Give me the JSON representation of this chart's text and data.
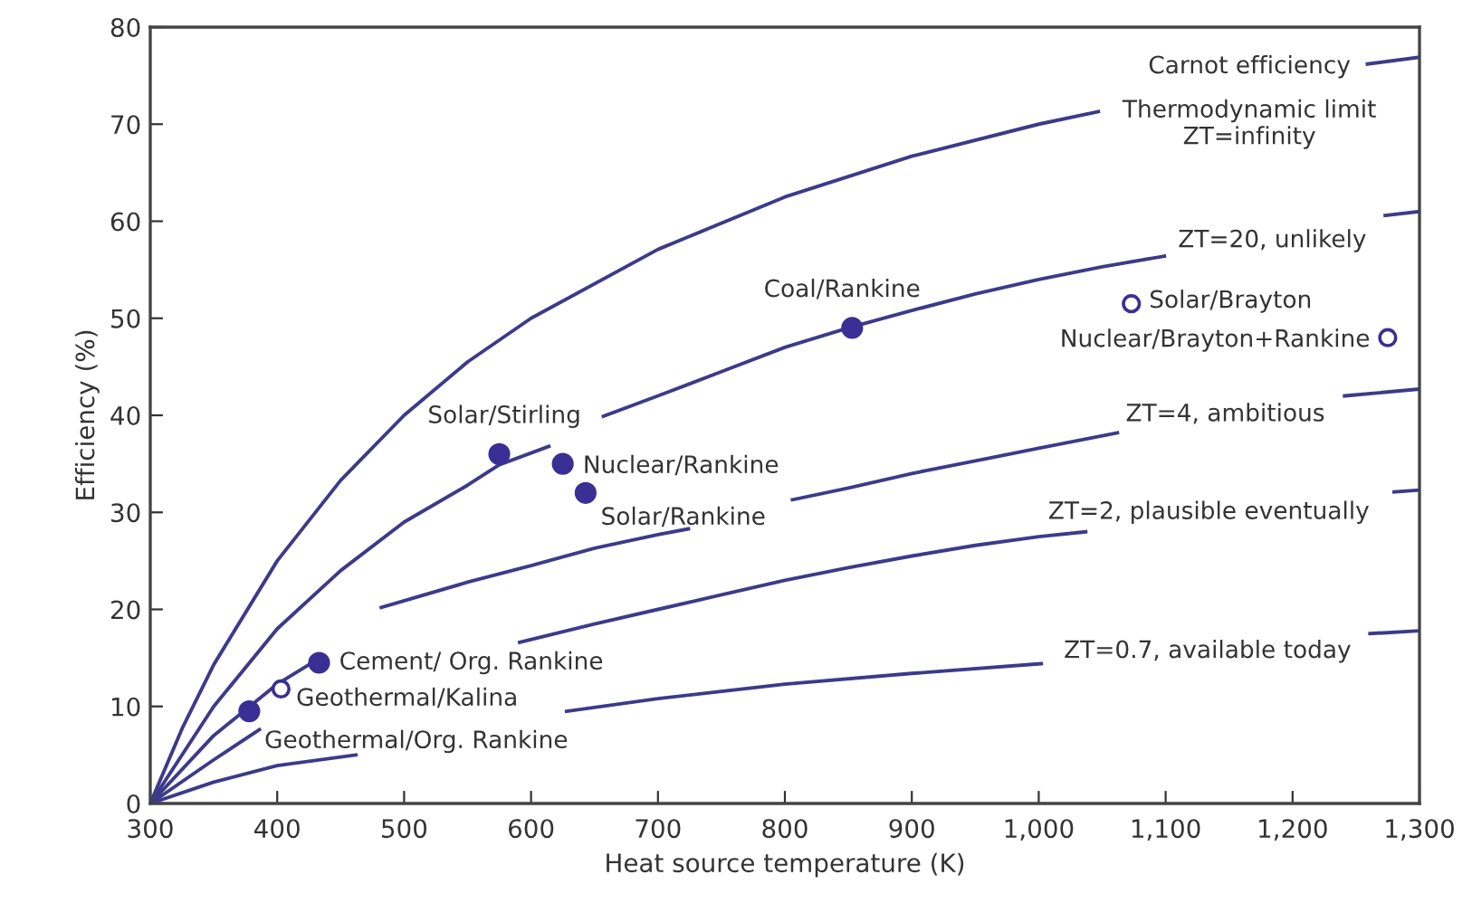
{
  "chart_data": {
    "type": "line",
    "xlabel": "Heat source temperature (K)",
    "ylabel": "Efficiency (%)",
    "xlim": [
      300,
      1300
    ],
    "ylim": [
      0,
      80
    ],
    "xticks": [
      300,
      400,
      500,
      600,
      700,
      800,
      900,
      {
        "value": 1000,
        "label": "1,000"
      },
      {
        "value": 1100,
        "label": "1,100"
      },
      {
        "value": 1200,
        "label": "1,200"
      },
      {
        "value": 1300,
        "label": "1,300"
      }
    ],
    "yticks": [
      0,
      10,
      20,
      30,
      40,
      50,
      60,
      70,
      80
    ],
    "grid": false,
    "legend": false,
    "marker": "none",
    "line_style": "solid",
    "series": [
      {
        "color": "#3d3a8a",
        "x": [
          300,
          325,
          350,
          400,
          450,
          500,
          550,
          600,
          700,
          800,
          900,
          1000,
          1047,
          1150,
          1259,
          1300
        ],
        "values": [
          0,
          7.7,
          14.3,
          25,
          33.3,
          40,
          45.5,
          50,
          57.1,
          62.5,
          66.7,
          70,
          71.3,
          null,
          76.2,
          76.9
        ]
      },
      {
        "color": "#3d3a8a",
        "x": [
          300,
          350,
          400,
          450,
          500,
          550,
          575,
          614,
          635,
          657,
          700,
          750,
          800,
          850,
          900,
          950,
          1000,
          1050,
          1099,
          1180,
          1273,
          1300
        ],
        "values": [
          0,
          10,
          18,
          24,
          29,
          32.8,
          34.9,
          36.8,
          null,
          39.9,
          42,
          44.5,
          47,
          49,
          50.8,
          52.5,
          54,
          55.3,
          56.4,
          null,
          60.6,
          61
        ]
      },
      {
        "color": "#3d3a8a",
        "x": [
          300,
          350,
          400,
          425,
          455,
          482,
          550,
          600,
          650,
          700,
          724,
          765,
          806,
          850,
          900,
          950,
          1000,
          1062,
          1150,
          1241,
          1300
        ],
        "values": [
          0,
          7,
          12.3,
          14.3,
          null,
          20.2,
          22.8,
          24.5,
          26.3,
          27.7,
          28.3,
          null,
          31.3,
          32.5,
          34,
          35.3,
          36.6,
          38.2,
          null,
          42,
          42.7
        ]
      },
      {
        "color": "#3d3a8a",
        "x": [
          300,
          350,
          386,
          490,
          591,
          650,
          700,
          750,
          800,
          850,
          900,
          950,
          1000,
          1037,
          1150,
          1280,
          1300
        ],
        "values": [
          0,
          4.5,
          7.6,
          null,
          16.6,
          18.5,
          20,
          21.5,
          23,
          24.3,
          25.5,
          26.6,
          27.5,
          28,
          null,
          32.1,
          32.3
        ]
      },
      {
        "color": "#3d3a8a",
        "x": [
          300,
          350,
          400,
          462,
          545,
          628,
          700,
          800,
          900,
          1002,
          1130,
          1261,
          1300
        ],
        "values": [
          0,
          2.2,
          3.9,
          5,
          null,
          9.5,
          10.8,
          12.3,
          13.4,
          14.4,
          null,
          17.5,
          17.8
        ]
      },
      {
        "type": "scatter",
        "color": "#3a2f94",
        "marker": "circle",
        "x": [
          378,
          433,
          575,
          625,
          643,
          853
        ],
        "values": [
          9.5,
          14.5,
          36,
          35,
          32,
          49
        ]
      },
      {
        "type": "scatter",
        "color": "#3a2f94",
        "marker": "circle",
        "x": [
          403,
          1073,
          1275
        ],
        "values": [
          11.8,
          51.5,
          48
        ]
      }
    ],
    "annotations": [
      "Carnot efficiency",
      "Thermodynamic limit\nZT=infinity",
      "ZT=20, unlikely",
      "ZT=4, ambitious",
      "ZT=2, plausible eventually",
      "ZT=0.7, available today",
      {
        "text": "Solar/Brayton",
        "x": 1073,
        "y": 51.5
      },
      {
        "text": "Nuclear/Brayton+Rankine",
        "x": 1275,
        "y": 48
      },
      {
        "text": "Coal/Rankine",
        "x": 853,
        "y": 49
      },
      {
        "text": "Solar/Stirling",
        "x": 575,
        "y": 36
      },
      {
        "text": "Nuclear/Rankine",
        "x": 625,
        "y": 35
      },
      {
        "text": "Solar/Rankine",
        "x": 643,
        "y": 32
      },
      {
        "text": "Cement/ Org. Rankine",
        "x": 433,
        "y": 14.5
      },
      {
        "text": "Geothermal/Kalina",
        "x": 403,
        "y": 11.8
      },
      {
        "text": "Geothermal/Org. Rankine",
        "x": 378,
        "y": 9.5
      }
    ]
  }
}
